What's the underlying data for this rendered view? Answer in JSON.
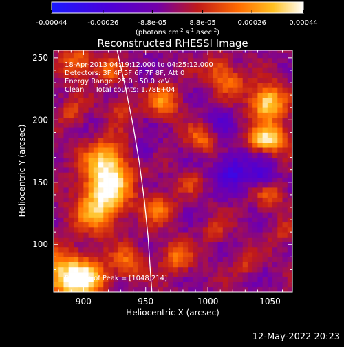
{
  "chart_data": {
    "type": "heatmap",
    "title": "Reconstructed RHESSI Image",
    "xlabel": "Heliocentric X (arcsec)",
    "ylabel": "Heliocentric Y (arcsec)",
    "xlim": [
      876,
      1068
    ],
    "ylim": [
      62,
      256
    ],
    "xticks": [
      900,
      950,
      1000,
      1050
    ],
    "yticks": [
      100,
      150,
      200,
      250
    ],
    "colorbar": {
      "min": -0.00044,
      "max": 0.00044,
      "tick_values": [
        -0.00044,
        -0.00026,
        -8.8e-05,
        8.8e-05,
        0.00026,
        0.00044
      ],
      "tick_labels": [
        "-0.00044",
        "-0.00026",
        "-8.8e-05",
        "8.8e-05",
        "0.00026",
        "0.00044"
      ],
      "units_text": "(photons cm",
      "units_sup1": "-2",
      "units_mid": " s",
      "units_sup2": "-1",
      "units_end": " asec",
      "units_sup3": "-2",
      "units_close": ")",
      "colors": [
        "#1a1aff",
        "#4b00d9",
        "#7300a8",
        "#c01a1a",
        "#ff6a00",
        "#ffc020",
        "#ffffff"
      ]
    },
    "annotations": {
      "line1": "18-Apr-2013 04:19:12.000 to 04:25:12.000",
      "line2": "Detectors: 3F 4F 5F 6F 7F 8F, Att 0",
      "line3": "Energy Range: 25.0 - 50.0 keV",
      "line4": "Clean     Total counts: 1.78E+04",
      "peak": "Position of Peak = [1048,214]"
    },
    "peak_position": [
      1048,
      214
    ],
    "limb_curve": [
      [
        927,
        256
      ],
      [
        934,
        225
      ],
      [
        940,
        195
      ],
      [
        945,
        165
      ],
      [
        949,
        135
      ],
      [
        952,
        105
      ],
      [
        954,
        75
      ],
      [
        955,
        62
      ]
    ],
    "hotspots": [
      {
        "x": 1048,
        "y": 214,
        "r": 10,
        "v": 0.00044
      },
      {
        "x": 1053,
        "y": 185,
        "r": 8,
        "v": 0.00036
      },
      {
        "x": 1040,
        "y": 185,
        "r": 6,
        "v": 0.00026
      },
      {
        "x": 920,
        "y": 150,
        "r": 14,
        "v": 0.00036
      },
      {
        "x": 912,
        "y": 128,
        "r": 13,
        "v": 0.0003
      },
      {
        "x": 918,
        "y": 170,
        "r": 11,
        "v": 0.00028
      },
      {
        "x": 885,
        "y": 75,
        "r": 14,
        "v": 0.0004
      },
      {
        "x": 905,
        "y": 72,
        "r": 10,
        "v": 0.0003
      },
      {
        "x": 935,
        "y": 85,
        "r": 9,
        "v": 0.00022
      },
      {
        "x": 965,
        "y": 215,
        "r": 9,
        "v": 0.00026
      },
      {
        "x": 960,
        "y": 130,
        "r": 9,
        "v": 0.00022
      },
      {
        "x": 995,
        "y": 185,
        "r": 8,
        "v": 0.0002
      },
      {
        "x": 975,
        "y": 90,
        "r": 9,
        "v": 0.00022
      },
      {
        "x": 930,
        "y": 210,
        "r": 7,
        "v": 0.00018
      },
      {
        "x": 895,
        "y": 245,
        "r": 9,
        "v": 0.00026
      },
      {
        "x": 920,
        "y": 240,
        "r": 7,
        "v": 0.00018
      },
      {
        "x": 1008,
        "y": 240,
        "r": 8,
        "v": 0.00022
      },
      {
        "x": 1020,
        "y": 230,
        "r": 7,
        "v": 0.0002
      },
      {
        "x": 985,
        "y": 150,
        "r": 6,
        "v": 0.00014
      },
      {
        "x": 1050,
        "y": 140,
        "r": 8,
        "v": 0.00018
      },
      {
        "x": 1060,
        "y": 110,
        "r": 6,
        "v": 0.00014
      },
      {
        "x": 1005,
        "y": 110,
        "r": 6,
        "v": 0.00014
      },
      {
        "x": 1030,
        "y": 85,
        "r": 6,
        "v": 0.00012
      },
      {
        "x": 890,
        "y": 205,
        "r": 7,
        "v": 0.00016
      },
      {
        "x": 1020,
        "y": 160,
        "r": 10,
        "v": -0.00026
      },
      {
        "x": 1045,
        "y": 155,
        "r": 7,
        "v": -0.00022
      },
      {
        "x": 1010,
        "y": 200,
        "r": 7,
        "v": -0.00016
      },
      {
        "x": 950,
        "y": 175,
        "r": 6,
        "v": -0.00012
      }
    ]
  },
  "footer": {
    "timestamp": "12-May-2022 20:23"
  }
}
